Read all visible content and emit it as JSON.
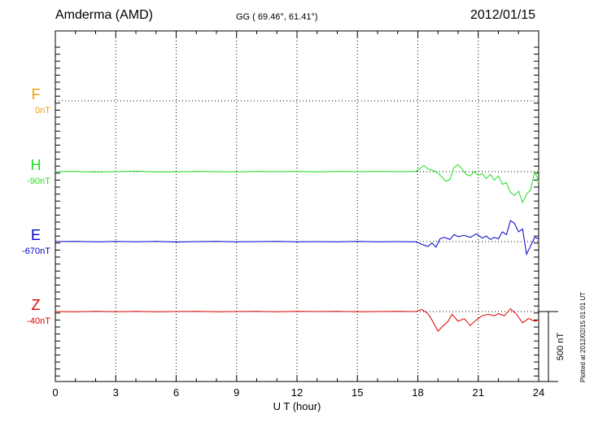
{
  "header": {
    "station": "Amderma (AMD)",
    "coords": "GG ( 69.46°,  61.41°)",
    "date": "2012/01/15"
  },
  "plotted_note": "Plotted at 2012/02/15 01:01 UT",
  "colors": {
    "F": "#f5a000",
    "H": "#22dd22",
    "E": "#0000cc",
    "Z": "#dd0000"
  },
  "chart_data": {
    "type": "line",
    "xlabel": "U T (hour)",
    "xlim": [
      0,
      24
    ],
    "xticks": [
      "0",
      "3",
      "6",
      "9",
      "12",
      "15",
      "18",
      "21",
      "24"
    ],
    "scale_bar_label": "500 nT",
    "scale_bar_nT": 500,
    "series": [
      {
        "name": "F",
        "baseline_label": "0nT",
        "baseline_nT": 0,
        "points": []
      },
      {
        "name": "H",
        "baseline_label": "-90nT",
        "baseline_nT": -90,
        "points": [
          [
            0,
            -90
          ],
          [
            1,
            -88
          ],
          [
            2,
            -93
          ],
          [
            3,
            -90
          ],
          [
            4,
            -87
          ],
          [
            5,
            -92
          ],
          [
            6,
            -91
          ],
          [
            7,
            -88
          ],
          [
            8,
            -90
          ],
          [
            9,
            -91
          ],
          [
            10,
            -89
          ],
          [
            11,
            -90
          ],
          [
            12,
            -88
          ],
          [
            13,
            -91
          ],
          [
            14,
            -89
          ],
          [
            15,
            -90
          ],
          [
            16,
            -88
          ],
          [
            17,
            -90
          ],
          [
            17.9,
            -89
          ],
          [
            18.1,
            -70
          ],
          [
            18.3,
            -45
          ],
          [
            18.5,
            -70
          ],
          [
            18.8,
            -85
          ],
          [
            19.0,
            -100
          ],
          [
            19.2,
            -130
          ],
          [
            19.4,
            -160
          ],
          [
            19.6,
            -145
          ],
          [
            19.8,
            -60
          ],
          [
            20.0,
            -40
          ],
          [
            20.2,
            -70
          ],
          [
            20.4,
            -110
          ],
          [
            20.6,
            -120
          ],
          [
            20.8,
            -90
          ],
          [
            21.0,
            -115
          ],
          [
            21.2,
            -105
          ],
          [
            21.4,
            -140
          ],
          [
            21.6,
            -110
          ],
          [
            21.8,
            -150
          ],
          [
            22.0,
            -120
          ],
          [
            22.2,
            -180
          ],
          [
            22.4,
            -170
          ],
          [
            22.6,
            -240
          ],
          [
            22.8,
            -260
          ],
          [
            23.0,
            -230
          ],
          [
            23.2,
            -310
          ],
          [
            23.4,
            -250
          ],
          [
            23.6,
            -220
          ],
          [
            23.8,
            -90
          ],
          [
            24.0,
            -160
          ]
        ]
      },
      {
        "name": "E",
        "baseline_label": "-670nT",
        "baseline_nT": -670,
        "points": [
          [
            0,
            -670
          ],
          [
            1,
            -668
          ],
          [
            2,
            -672
          ],
          [
            3,
            -669
          ],
          [
            4,
            -671
          ],
          [
            5,
            -668
          ],
          [
            6,
            -673
          ],
          [
            7,
            -670
          ],
          [
            8,
            -668
          ],
          [
            9,
            -671
          ],
          [
            10,
            -670
          ],
          [
            11,
            -669
          ],
          [
            12,
            -671
          ],
          [
            13,
            -670
          ],
          [
            14,
            -672
          ],
          [
            15,
            -668
          ],
          [
            16,
            -671
          ],
          [
            17,
            -670
          ],
          [
            17.9,
            -672
          ],
          [
            18.2,
            -690
          ],
          [
            18.5,
            -705
          ],
          [
            18.7,
            -680
          ],
          [
            18.9,
            -710
          ],
          [
            19.1,
            -650
          ],
          [
            19.3,
            -640
          ],
          [
            19.6,
            -655
          ],
          [
            19.8,
            -620
          ],
          [
            20.0,
            -635
          ],
          [
            20.3,
            -625
          ],
          [
            20.6,
            -640
          ],
          [
            20.9,
            -615
          ],
          [
            21.2,
            -645
          ],
          [
            21.4,
            -630
          ],
          [
            21.6,
            -655
          ],
          [
            21.8,
            -640
          ],
          [
            22.0,
            -650
          ],
          [
            22.2,
            -600
          ],
          [
            22.4,
            -620
          ],
          [
            22.6,
            -520
          ],
          [
            22.8,
            -540
          ],
          [
            23.0,
            -600
          ],
          [
            23.2,
            -580
          ],
          [
            23.4,
            -760
          ],
          [
            23.6,
            -700
          ],
          [
            23.8,
            -640
          ],
          [
            24.0,
            -650
          ]
        ]
      },
      {
        "name": "Z",
        "baseline_label": "-40nT",
        "baseline_nT": -40,
        "points": [
          [
            0,
            -40
          ],
          [
            1,
            -42
          ],
          [
            2,
            -38
          ],
          [
            3,
            -41
          ],
          [
            4,
            -39
          ],
          [
            5,
            -42
          ],
          [
            6,
            -40
          ],
          [
            7,
            -38
          ],
          [
            8,
            -41
          ],
          [
            9,
            -40
          ],
          [
            10,
            -39
          ],
          [
            11,
            -41
          ],
          [
            12,
            -38
          ],
          [
            13,
            -40
          ],
          [
            14,
            -39
          ],
          [
            15,
            -41
          ],
          [
            16,
            -40
          ],
          [
            17,
            -38
          ],
          [
            17.9,
            -40
          ],
          [
            18.2,
            -25
          ],
          [
            18.5,
            -55
          ],
          [
            18.7,
            -100
          ],
          [
            19.0,
            -180
          ],
          [
            19.2,
            -150
          ],
          [
            19.5,
            -110
          ],
          [
            19.7,
            -60
          ],
          [
            20.0,
            -110
          ],
          [
            20.3,
            -90
          ],
          [
            20.6,
            -140
          ],
          [
            20.9,
            -100
          ],
          [
            21.2,
            -70
          ],
          [
            21.5,
            -60
          ],
          [
            21.8,
            -70
          ],
          [
            22.0,
            -55
          ],
          [
            22.3,
            -70
          ],
          [
            22.6,
            -20
          ],
          [
            22.9,
            -60
          ],
          [
            23.2,
            -120
          ],
          [
            23.5,
            -90
          ],
          [
            23.8,
            -110
          ],
          [
            24.0,
            -100
          ]
        ]
      }
    ]
  }
}
